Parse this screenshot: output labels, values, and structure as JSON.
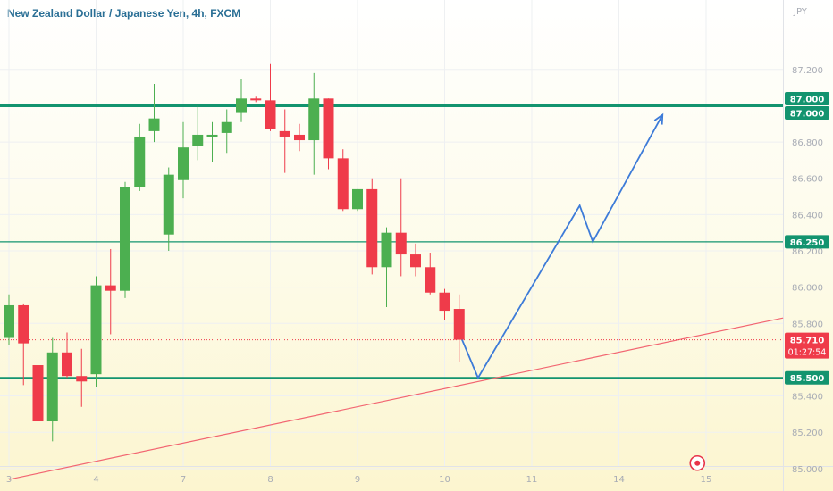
{
  "chart_data": {
    "type": "candlestick",
    "title": "New Zealand Dollar / Japanese Yen, 4h, FXCM",
    "currency_label": "JPY",
    "ylim": [
      84.95,
      87.45
    ],
    "y_ticks": [
      "87.200",
      "86.800",
      "86.600",
      "86.400",
      "86.200",
      "86.000",
      "85.800",
      "85.400",
      "85.200",
      "85.000"
    ],
    "x_ticks": [
      {
        "label": "3",
        "index": 0
      },
      {
        "label": "4",
        "index": 6
      },
      {
        "label": "7",
        "index": 12
      },
      {
        "label": "8",
        "index": 18
      },
      {
        "label": "9",
        "index": 24
      },
      {
        "label": "10",
        "index": 30
      },
      {
        "label": "11",
        "index": 36
      },
      {
        "label": "14",
        "index": 42
      },
      {
        "label": "15",
        "index": 48
      }
    ],
    "candles": [
      {
        "o": 85.72,
        "h": 85.96,
        "l": 85.68,
        "c": 85.9
      },
      {
        "o": 85.9,
        "h": 85.91,
        "l": 85.46,
        "c": 85.69
      },
      {
        "o": 85.57,
        "h": 85.7,
        "l": 85.17,
        "c": 85.26
      },
      {
        "o": 85.26,
        "h": 85.72,
        "l": 85.15,
        "c": 85.64
      },
      {
        "o": 85.64,
        "h": 85.75,
        "l": 85.5,
        "c": 85.51
      },
      {
        "o": 85.51,
        "h": 85.66,
        "l": 85.34,
        "c": 85.48
      },
      {
        "o": 85.52,
        "h": 86.06,
        "l": 85.45,
        "c": 86.01
      },
      {
        "o": 86.01,
        "h": 86.21,
        "l": 85.74,
        "c": 85.98
      },
      {
        "o": 85.98,
        "h": 86.58,
        "l": 85.94,
        "c": 86.55
      },
      {
        "o": 86.55,
        "h": 86.9,
        "l": 86.53,
        "c": 86.83
      },
      {
        "o": 86.86,
        "h": 87.12,
        "l": 86.8,
        "c": 86.93
      },
      {
        "o": 86.29,
        "h": 86.66,
        "l": 86.2,
        "c": 86.62
      },
      {
        "o": 86.59,
        "h": 86.91,
        "l": 86.49,
        "c": 86.77
      },
      {
        "o": 86.78,
        "h": 87.0,
        "l": 86.7,
        "c": 86.84
      },
      {
        "o": 86.83,
        "h": 86.91,
        "l": 86.69,
        "c": 86.84
      },
      {
        "o": 86.85,
        "h": 86.98,
        "l": 86.74,
        "c": 86.91
      },
      {
        "o": 86.96,
        "h": 87.15,
        "l": 86.91,
        "c": 87.04
      },
      {
        "o": 87.04,
        "h": 87.05,
        "l": 87.02,
        "c": 87.03
      },
      {
        "o": 87.03,
        "h": 87.23,
        "l": 86.86,
        "c": 86.87
      },
      {
        "o": 86.86,
        "h": 86.98,
        "l": 86.63,
        "c": 86.83
      },
      {
        "o": 86.84,
        "h": 86.9,
        "l": 86.75,
        "c": 86.81
      },
      {
        "o": 86.81,
        "h": 87.18,
        "l": 86.62,
        "c": 87.04
      },
      {
        "o": 87.04,
        "h": 87.04,
        "l": 86.65,
        "c": 86.71
      },
      {
        "o": 86.71,
        "h": 86.76,
        "l": 86.42,
        "c": 86.43
      },
      {
        "o": 86.43,
        "h": 86.54,
        "l": 86.42,
        "c": 86.54
      },
      {
        "o": 86.54,
        "h": 86.6,
        "l": 86.07,
        "c": 86.11
      },
      {
        "o": 86.11,
        "h": 86.33,
        "l": 85.89,
        "c": 86.3
      },
      {
        "o": 86.3,
        "h": 86.6,
        "l": 86.06,
        "c": 86.18
      },
      {
        "o": 86.18,
        "h": 86.24,
        "l": 86.06,
        "c": 86.11
      },
      {
        "o": 86.11,
        "h": 86.19,
        "l": 85.96,
        "c": 85.97
      },
      {
        "o": 85.97,
        "h": 85.99,
        "l": 85.82,
        "c": 85.87
      },
      {
        "o": 85.88,
        "h": 85.96,
        "l": 85.59,
        "c": 85.71
      }
    ],
    "levels": [
      {
        "value": 87.0,
        "label": "87.000",
        "width": 3
      },
      {
        "value": 86.25,
        "label": "86.250",
        "width": 1.3
      },
      {
        "value": 85.5,
        "label": "85.500",
        "width": 2
      }
    ],
    "current_price": {
      "value": 85.71,
      "label": "85.710",
      "countdown": "01:27:54"
    },
    "trendline": {
      "from": {
        "index": 0,
        "value": 84.94
      },
      "to": {
        "index": 53.3,
        "value": 85.83
      }
    },
    "projection_path": [
      {
        "index": 31.2,
        "value": 85.71
      },
      {
        "index": 32.3,
        "value": 85.5
      },
      {
        "index": 39.3,
        "value": 86.45
      },
      {
        "index": 40.2,
        "value": 86.25
      },
      {
        "index": 45.0,
        "value": 86.95
      }
    ],
    "marker_index": 47.4,
    "marker_value": 85.03,
    "colors": {
      "up": "#4caf50",
      "down": "#ef3b4a",
      "level": "#13946f",
      "current": "#ef3b4a",
      "trendline": "#f26571",
      "projection": "#3d7bd8",
      "grid": "#eef0f2",
      "axis_text": "#a8acb5"
    }
  }
}
